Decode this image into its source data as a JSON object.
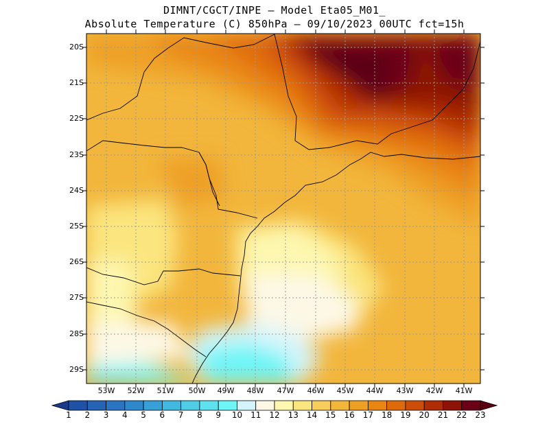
{
  "header": {
    "line1": "DIMNT/CGCT/INPE –  Model Eta05_M01_",
    "line2": "Absolute Temperature (C) 850hPa –  09/10/2023 00UTC fct=15h"
  },
  "map": {
    "lat_labels": [
      "20S",
      "21S",
      "22S",
      "23S",
      "24S",
      "25S",
      "26S",
      "27S",
      "28S",
      "29S"
    ],
    "lon_labels": [
      "53W",
      "52W",
      "51W",
      "50W",
      "49W",
      "48W",
      "47W",
      "46W",
      "45W",
      "44W",
      "43W",
      "42W",
      "41W"
    ],
    "lon_range": [
      -53.8,
      -40.4
    ],
    "lat_range": [
      -29.4,
      -19.9
    ]
  },
  "colorbar": {
    "labels": [
      "1",
      "2",
      "3",
      "4",
      "5",
      "6",
      "7",
      "8",
      "9",
      "10",
      "11",
      "12",
      "13",
      "14",
      "15",
      "16",
      "17",
      "18",
      "19",
      "20",
      "21",
      "22",
      "23"
    ],
    "colors": [
      "#1a3a8c",
      "#1f52a6",
      "#2563b4",
      "#2a74c1",
      "#2f87cc",
      "#37a0d6",
      "#41b8df",
      "#4fcde7",
      "#5ee2ef",
      "#6ef5f7",
      "#d4f4fb",
      "#fdf8e6",
      "#fdf7b0",
      "#fbe57e",
      "#f7ce5c",
      "#f2b63c",
      "#eea025",
      "#e98612",
      "#df6a0a",
      "#cc4d07",
      "#b02c05",
      "#8e1206",
      "#6b0116",
      "#5a0012"
    ]
  }
}
